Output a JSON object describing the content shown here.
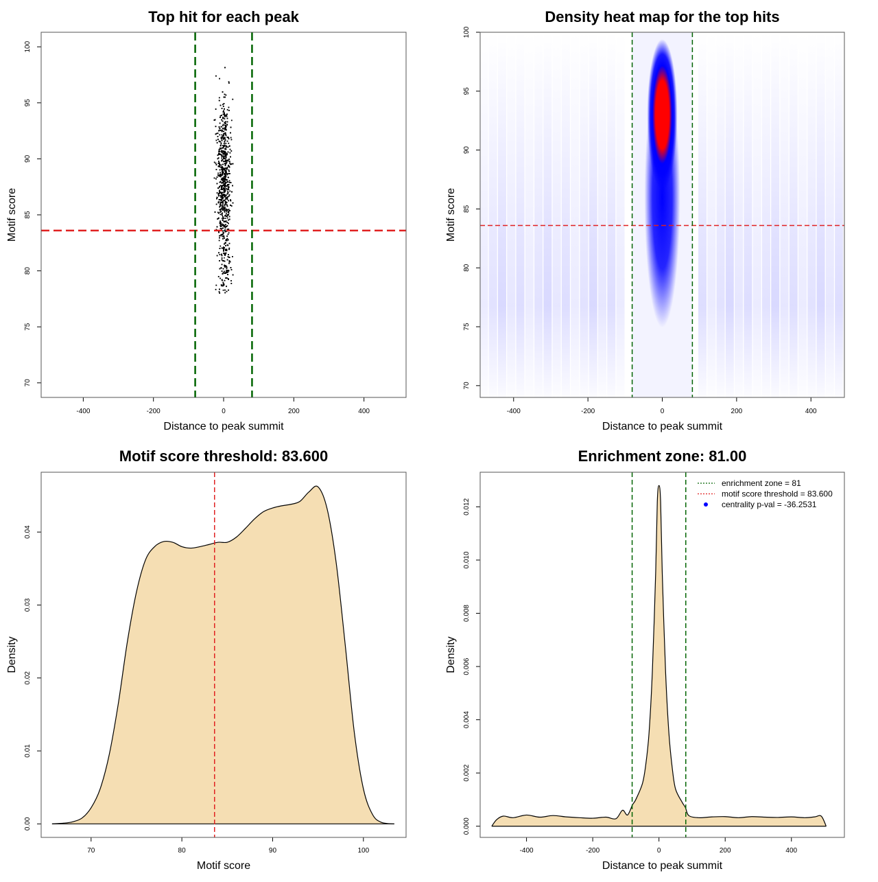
{
  "colors": {
    "threshold": "#e02020",
    "zone": "#006400",
    "fill": "#f5deb3",
    "centrality": "#0000ff"
  },
  "chart_data": [
    {
      "id": "scatter",
      "type": "scatter",
      "title": "Top hit for each peak",
      "xlabel": "Distance to peak summit",
      "ylabel": "Motif score",
      "xlim": [
        -520,
        520
      ],
      "ylim": [
        68.7,
        101.3
      ],
      "xticks": [
        -400,
        -200,
        0,
        200,
        400
      ],
      "xtick_labels": [
        "-400",
        "-200",
        "0",
        "200",
        "400"
      ],
      "yticks": [
        70,
        75,
        80,
        85,
        90,
        95,
        100
      ],
      "ytick_labels": [
        "70",
        "75",
        "80",
        "85",
        "90",
        "95",
        "100"
      ],
      "threshold_y": 83.6,
      "zone_x": [
        -81,
        81
      ]
    },
    {
      "id": "heatmap",
      "type": "heatmap",
      "title": "Density heat map for the top hits",
      "xlabel": "Distance to peak summit",
      "ylabel": "Motif score",
      "xlim": [
        -490,
        490
      ],
      "ylim": [
        69,
        100
      ],
      "xticks": [
        -400,
        -200,
        0,
        200,
        400
      ],
      "xtick_labels": [
        "-400",
        "-200",
        "0",
        "200",
        "400"
      ],
      "yticks": [
        70,
        75,
        80,
        85,
        90,
        95,
        100
      ],
      "ytick_labels": [
        "70",
        "75",
        "80",
        "85",
        "90",
        "95",
        "100"
      ],
      "threshold_y": 83.6,
      "zone_x": [
        -81,
        81
      ],
      "peak": {
        "x": 0,
        "y": 93
      }
    },
    {
      "id": "score-density",
      "type": "area",
      "title": "Motif score threshold: 83.600",
      "xlabel": "Motif score",
      "ylabel": "Density",
      "xlim": [
        64.5,
        104.7
      ],
      "ylim": [
        -0.00185,
        0.0482
      ],
      "xticks": [
        70,
        80,
        90,
        100
      ],
      "xtick_labels": [
        "70",
        "80",
        "90",
        "100"
      ],
      "yticks": [
        0,
        0.01,
        0.02,
        0.03,
        0.04
      ],
      "ytick_labels": [
        "0.00",
        "0.01",
        "0.02",
        "0.03",
        "0.04"
      ],
      "threshold_x": 83.6,
      "x": [
        65.7,
        67,
        68,
        69,
        70,
        71,
        72,
        73,
        74,
        75,
        76,
        77,
        78,
        79,
        80,
        81,
        82,
        83,
        84,
        85,
        86,
        87,
        88,
        89,
        90,
        91,
        92,
        93,
        94,
        95,
        96,
        97,
        98,
        99,
        100,
        101,
        102,
        103.4
      ],
      "y": [
        0,
        0.0001,
        0.0003,
        0.0008,
        0.0022,
        0.0048,
        0.0095,
        0.0165,
        0.025,
        0.0318,
        0.0362,
        0.038,
        0.0387,
        0.0386,
        0.038,
        0.0378,
        0.038,
        0.0383,
        0.0386,
        0.0386,
        0.0393,
        0.0405,
        0.0418,
        0.0428,
        0.0433,
        0.0436,
        0.0438,
        0.0442,
        0.0455,
        0.0462,
        0.0432,
        0.0358,
        0.0245,
        0.0125,
        0.0048,
        0.0013,
        0.0002,
        0
      ]
    },
    {
      "id": "distance-density",
      "type": "area",
      "title": "Enrichment zone: 81.00",
      "xlabel": "Distance to peak summit",
      "ylabel": "Density",
      "xlim": [
        -540,
        560
      ],
      "ylim": [
        -0.00042,
        0.0133
      ],
      "xticks": [
        -400,
        -200,
        0,
        200,
        400
      ],
      "xtick_labels": [
        "-400",
        "-200",
        "0",
        "200",
        "400"
      ],
      "yticks": [
        0,
        0.002,
        0.004,
        0.006,
        0.008,
        0.01,
        0.012
      ],
      "ytick_labels": [
        "0.000",
        "0.002",
        "0.004",
        "0.006",
        "0.008",
        "0.010",
        "0.012"
      ],
      "zone_x": [
        -81,
        81
      ],
      "x": [
        -505,
        -490,
        -470,
        -440,
        -400,
        -360,
        -320,
        -280,
        -240,
        -200,
        -160,
        -130,
        -110,
        -95,
        -80,
        -70,
        -50,
        -40,
        -30,
        -20,
        -10,
        -5,
        0,
        5,
        10,
        20,
        30,
        40,
        50,
        70,
        80,
        90,
        120,
        160,
        200,
        240,
        280,
        320,
        360,
        400,
        440,
        470,
        490,
        505
      ],
      "y": [
        0,
        0.00025,
        0.00038,
        0.00032,
        0.00042,
        0.00034,
        0.0004,
        0.00035,
        0.00032,
        0.0003,
        0.00034,
        0.00028,
        0.0006,
        0.00042,
        0.0008,
        0.001,
        0.0016,
        0.0023,
        0.0035,
        0.0058,
        0.0095,
        0.0122,
        0.0128,
        0.0122,
        0.0095,
        0.0058,
        0.0035,
        0.0022,
        0.0014,
        0.0009,
        0.0007,
        0.0004,
        0.00032,
        0.00035,
        0.00036,
        0.00032,
        0.00036,
        0.00034,
        0.00033,
        0.00035,
        0.00032,
        0.00035,
        0.00038,
        0
      ]
    }
  ],
  "legend": {
    "items": [
      {
        "label": "enrichment zone = 81",
        "kind": "line",
        "color": "#006400"
      },
      {
        "label": "motif score threshold = 83.600",
        "kind": "line",
        "color": "#e02020"
      },
      {
        "label": "centrality p-val = -36.2531",
        "kind": "dot",
        "color": "#0000ff"
      }
    ]
  }
}
